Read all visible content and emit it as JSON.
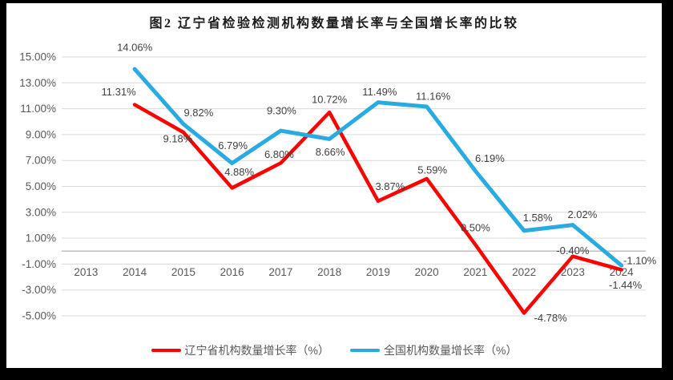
{
  "frame": {
    "border_color": "#000000",
    "background_color": "#ffffff"
  },
  "chart_data": {
    "type": "line",
    "title": "图2 辽宁省检验检测机构数量增长率与全国增长率的比较",
    "categories": [
      "2013",
      "2014",
      "2015",
      "2016",
      "2017",
      "2018",
      "2019",
      "2020",
      "2021",
      "2022",
      "2023",
      "2024"
    ],
    "series": [
      {
        "name": "辽宁省机构数量增长率（%）",
        "color": "#FF0000",
        "values": [
          null,
          11.31,
          9.18,
          4.88,
          6.8,
          10.72,
          3.87,
          5.59,
          0.5,
          -4.78,
          -0.4,
          -1.44
        ],
        "labels": [
          "",
          "11.31%",
          "9.18%",
          "4.88%",
          "6.80%",
          "10.72%",
          "3.87%",
          "5.59%",
          "0.50%",
          "-4.78%",
          "-0.40%",
          "-1.44%"
        ]
      },
      {
        "name": "全国机构数量增长率（%）",
        "color": "#29ABE2",
        "values": [
          null,
          14.06,
          9.82,
          6.79,
          9.3,
          8.66,
          11.49,
          11.16,
          6.19,
          1.58,
          2.02,
          -1.1
        ],
        "labels": [
          "",
          "14.06%",
          "9.82%",
          "6.79%",
          "9.30%",
          "8.66%",
          "11.49%",
          "11.16%",
          "6.19%",
          "1.58%",
          "2.02%",
          "-1.10%"
        ]
      }
    ],
    "y_axis": {
      "max": 15,
      "min": -5,
      "step": 2,
      "tick_labels": [
        "15.00%",
        "13.00%",
        "11.00%",
        "9.00%",
        "7.00%",
        "5.00%",
        "3.00%",
        "1.00%",
        "-1.00%",
        "-3.00%",
        "-5.00%"
      ]
    },
    "grid": true,
    "legend_position": "bottom",
    "colors": {
      "gridline": "#D9D9D9",
      "axis_line": "#BFBFBF",
      "tick_label": "#595959",
      "data_label": "#3F3F3F"
    }
  }
}
